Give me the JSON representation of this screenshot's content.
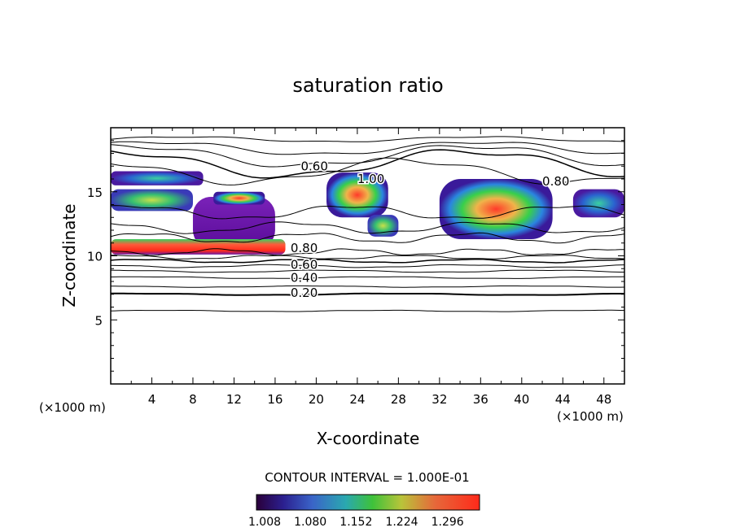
{
  "chart_data": {
    "type": "heatmap",
    "title": "saturation ratio",
    "xlabel": "X-coordinate",
    "ylabel": "Z-coordinate",
    "x_unit_left": "(×1000 m)",
    "x_unit_right": "(×1000 m)",
    "xlim": [
      0,
      50
    ],
    "ylim": [
      0,
      20
    ],
    "xticks": [
      4,
      8,
      12,
      16,
      20,
      24,
      28,
      32,
      36,
      40,
      44,
      48
    ],
    "yticks": [
      5,
      10,
      15
    ],
    "grid": false,
    "contour_interval_text": "CONTOUR INTERVAL = 1.000E-01",
    "contour_lines": [
      {
        "label": "0.20",
        "z": 7.1
      },
      {
        "label": "0.40",
        "z": 8.3
      },
      {
        "label": "0.60",
        "z": 9.3
      },
      {
        "label": "0.80",
        "z": 10.6
      },
      {
        "label": "0.60",
        "z": 17.0
      },
      {
        "label": "0.80",
        "z": 15.8
      },
      {
        "label": "1.00",
        "z": 16.0
      }
    ],
    "shaded_regions": [
      {
        "x": [
          0,
          9
        ],
        "z": [
          15.5,
          16.6
        ],
        "value": 1.1
      },
      {
        "x": [
          0,
          8
        ],
        "z": [
          13.5,
          15.2
        ],
        "value": 1.18
      },
      {
        "x": [
          8,
          16
        ],
        "z": [
          10.6,
          14.6
        ],
        "value": 1.03
      },
      {
        "x": [
          0,
          17
        ],
        "z": [
          10.1,
          11.3
        ],
        "value": 1.28
      },
      {
        "x": [
          10,
          15
        ],
        "z": [
          14.0,
          15.0
        ],
        "value": 1.26
      },
      {
        "x": [
          21,
          27
        ],
        "z": [
          13.0,
          16.5
        ],
        "value": 1.27
      },
      {
        "x": [
          25,
          28
        ],
        "z": [
          11.5,
          13.2
        ],
        "value": 1.15
      },
      {
        "x": [
          32,
          43
        ],
        "z": [
          11.3,
          16.0
        ],
        "value": 1.29
      },
      {
        "x": [
          45,
          50
        ],
        "z": [
          13.0,
          15.2
        ],
        "value": 1.12
      }
    ],
    "colorbar": {
      "ticks": [
        "1.008",
        "1.080",
        "1.152",
        "1.224",
        "1.296"
      ],
      "range": [
        1.008,
        1.296
      ]
    }
  }
}
